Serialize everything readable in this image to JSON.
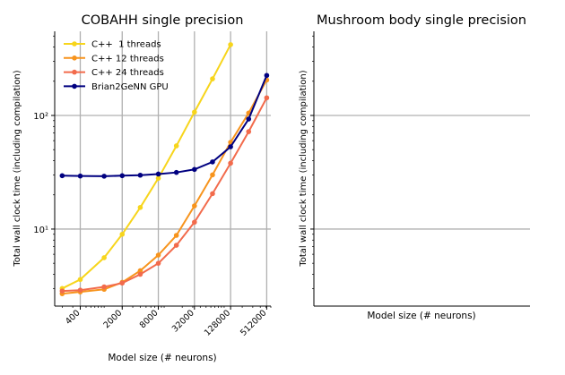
{
  "colors": {
    "grid": "#b0b0b0",
    "axis": "#000000",
    "series": [
      "#f7d51c",
      "#f7941d",
      "#f26b4c",
      "#000080"
    ]
  },
  "chart_data": [
    {
      "type": "line",
      "title": "COBAHH single precision",
      "xlabel": "Model size (# neurons)",
      "ylabel": "Total wall clock time (including compilation)",
      "xscale": "log",
      "yscale": "log",
      "xlim": [
        150,
        600000
      ],
      "ylim": [
        2.1,
        550
      ],
      "xticks": [
        400,
        2000,
        8000,
        32000,
        128000,
        512000
      ],
      "xtick_labels": [
        "400",
        "2000",
        "8000",
        "32000",
        "128000",
        "512000"
      ],
      "yticks": [
        10,
        100
      ],
      "ytick_labels": [
        "10¹",
        "10²"
      ],
      "grid": true,
      "legend_position": "top-left",
      "series": [
        {
          "name": "C++  1 threads",
          "x": [
            200,
            400,
            1000,
            2000,
            4000,
            8000,
            16000,
            32000,
            64000,
            128000
          ],
          "y": [
            3.0,
            3.6,
            5.6,
            9.0,
            15.5,
            28.0,
            54.0,
            107.0,
            210.0,
            420.0
          ]
        },
        {
          "name": "C++ 12 threads",
          "x": [
            200,
            400,
            1000,
            2000,
            4000,
            8000,
            16000,
            32000,
            64000,
            128000,
            256000,
            512000
          ],
          "y": [
            2.7,
            2.8,
            2.95,
            3.4,
            4.3,
            5.9,
            8.8,
            16.0,
            30.0,
            58.0,
            105.0,
            205.0
          ]
        },
        {
          "name": "C++ 24 threads",
          "x": [
            200,
            400,
            1000,
            2000,
            4000,
            8000,
            16000,
            32000,
            64000,
            128000,
            256000,
            512000
          ],
          "y": [
            2.85,
            2.9,
            3.1,
            3.35,
            4.0,
            5.0,
            7.2,
            11.5,
            20.5,
            38.0,
            72.0,
            143.0
          ]
        },
        {
          "name": "Brian2GeNN GPU",
          "x": [
            200,
            400,
            1000,
            2000,
            4000,
            8000,
            16000,
            32000,
            64000,
            128000,
            256000,
            512000
          ],
          "y": [
            29.5,
            29.3,
            29.2,
            29.5,
            29.8,
            30.5,
            31.5,
            33.5,
            39.0,
            53.0,
            93.0,
            225.0
          ]
        }
      ]
    },
    {
      "type": "line",
      "title": "Mushroom body single precision",
      "xlabel": "Model size (# neurons)",
      "ylabel": "Total wall clock time (including compilation)",
      "yscale": "log",
      "ylim": [
        2.1,
        550
      ],
      "yticks": [
        10,
        100
      ],
      "grid": true,
      "series": []
    }
  ]
}
